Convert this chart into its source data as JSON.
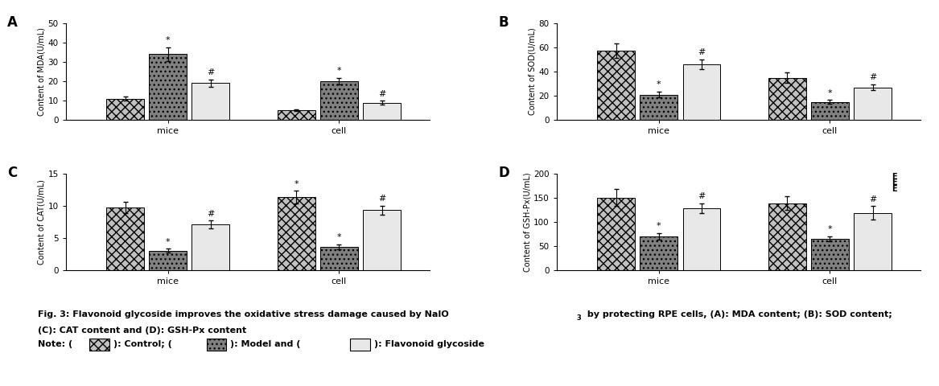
{
  "panels": [
    {
      "label": "A",
      "ylabel": "Content of MDA(U/mL)",
      "ylim": [
        0,
        50
      ],
      "yticks": [
        0,
        10,
        20,
        30,
        40,
        50
      ],
      "groups": [
        "mice",
        "cell"
      ],
      "bars": [
        {
          "values": [
            11,
            34,
            19
          ],
          "errors": [
            1.0,
            3.5,
            2.0
          ]
        },
        {
          "values": [
            5,
            20,
            9
          ],
          "errors": [
            0.5,
            1.8,
            1.0
          ]
        }
      ],
      "annotations": [
        [
          null,
          "*",
          "#"
        ],
        [
          null,
          "*",
          "#"
        ]
      ]
    },
    {
      "label": "B",
      "ylabel": "Content of SOD(U/mL)",
      "ylim": [
        0,
        80
      ],
      "yticks": [
        0,
        20,
        40,
        60,
        80
      ],
      "groups": [
        "mice",
        "cell"
      ],
      "bars": [
        {
          "values": [
            57,
            21,
            46
          ],
          "errors": [
            6.0,
            2.5,
            4.0
          ]
        },
        {
          "values": [
            35,
            15,
            27
          ],
          "errors": [
            4.5,
            1.5,
            2.5
          ]
        }
      ],
      "annotations": [
        [
          null,
          "*",
          "#"
        ],
        [
          null,
          "*",
          "#"
        ]
      ]
    },
    {
      "label": "C",
      "ylabel": "Content of CAT(U/mL)",
      "ylim": [
        0,
        15
      ],
      "yticks": [
        0,
        5,
        10,
        15
      ],
      "groups": [
        "mice",
        "cell"
      ],
      "bars": [
        {
          "values": [
            9.7,
            3.0,
            7.1
          ],
          "errors": [
            0.9,
            0.3,
            0.6
          ]
        },
        {
          "values": [
            11.3,
            3.6,
            9.3
          ],
          "errors": [
            1.0,
            0.4,
            0.7
          ]
        }
      ],
      "annotations": [
        [
          null,
          "*",
          "#"
        ],
        [
          "*",
          "*",
          "#"
        ]
      ]
    },
    {
      "label": "D",
      "ylabel": "Content of GSH-Px(U/mL)",
      "ylim": [
        0,
        200
      ],
      "yticks": [
        0,
        50,
        100,
        150,
        200
      ],
      "groups": [
        "mice",
        "cell"
      ],
      "bars": [
        {
          "values": [
            150,
            70,
            128
          ],
          "errors": [
            18.0,
            7.0,
            10.0
          ]
        },
        {
          "values": [
            138,
            65,
            118
          ],
          "errors": [
            14.0,
            5.0,
            14.0
          ]
        }
      ],
      "annotations": [
        [
          null,
          "*",
          "#"
        ],
        [
          null,
          "*",
          "#"
        ]
      ],
      "extra_annotation": true
    }
  ]
}
